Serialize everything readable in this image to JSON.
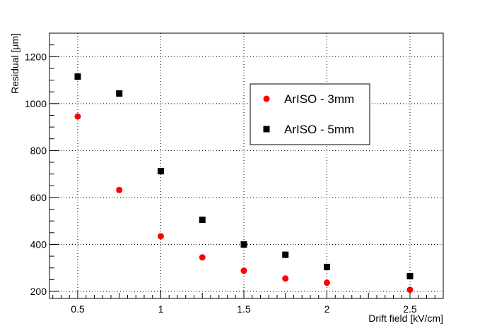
{
  "chart_data": {
    "type": "scatter",
    "title": "",
    "xlabel": "Drift field [kV/cm]",
    "ylabel": "Residual [μm]",
    "xlim": [
      0.33,
      2.7
    ],
    "ylim": [
      170,
      1300
    ],
    "xticks": [
      0.5,
      1,
      1.5,
      2,
      2.5
    ],
    "xtick_labels": [
      "0.5",
      "1",
      "1.5",
      "2",
      "2.5"
    ],
    "yticks": [
      200,
      400,
      600,
      800,
      1000,
      1200
    ],
    "ytick_labels": [
      "200",
      "400",
      "600",
      "800",
      "1000",
      "1200"
    ],
    "grid": true,
    "grid_style": "dotted",
    "legend_position": "top-right",
    "series": [
      {
        "name": "ArISO - 3mm",
        "marker": "circle",
        "color": "#ff0000",
        "x": [
          0.5,
          0.75,
          1.0,
          1.25,
          1.5,
          1.75,
          2.0,
          2.5
        ],
        "y": [
          945,
          632,
          435,
          345,
          288,
          255,
          237,
          207
        ]
      },
      {
        "name": "ArISO - 5mm",
        "marker": "square",
        "color": "#000000",
        "x": [
          0.5,
          0.75,
          1.0,
          1.25,
          1.5,
          1.75,
          2.0,
          2.5
        ],
        "y": [
          1115,
          1043,
          712,
          505,
          400,
          356,
          304,
          265
        ]
      }
    ]
  }
}
